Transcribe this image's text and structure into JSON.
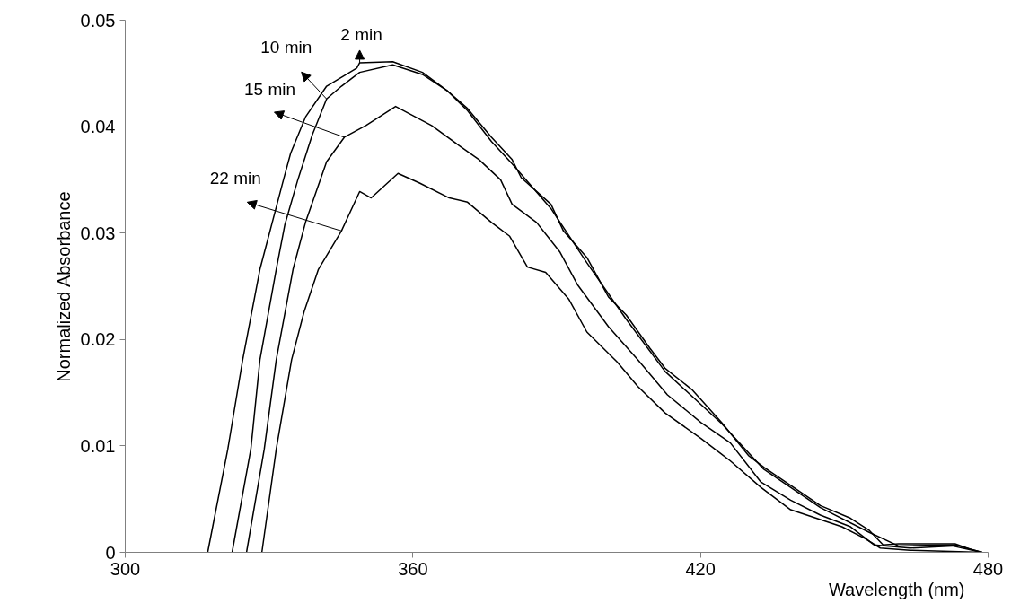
{
  "chart_data": {
    "type": "line",
    "xlabel": "Wavelength (nm)",
    "ylabel": "Normalized Absorbance",
    "xlim": [
      300,
      480
    ],
    "xticks": [
      300,
      360,
      420,
      480
    ],
    "ylim": [
      0,
      0.05
    ],
    "yticks": [
      0,
      0.01,
      0.02,
      0.03,
      0.04,
      0.05
    ],
    "grid": false,
    "line_style": "solid",
    "marker": "none",
    "series": [
      {
        "color": "#000000",
        "x": [
          317.2,
          321.4,
          324.5,
          328.1,
          333.0,
          334.5,
          337.6,
          342.0,
          348.3,
          348.9,
          355.8,
          362.0,
          367.1,
          371.4,
          376.4,
          380.7,
          382.6,
          388.8,
          391.4,
          396.3,
          400.8,
          404.5,
          409.4,
          412.6,
          418.2,
          424.4,
          430.0,
          433.2,
          438.8,
          445.0,
          451.3,
          455.1,
          458.1,
          461.3,
          467.4,
          473.1,
          476.2,
          478.7
        ],
        "values": [
          0,
          0.0097,
          0.0181,
          0.0266,
          0.035,
          0.0375,
          0.0409,
          0.0438,
          0.0455,
          0.046,
          0.0461,
          0.0451,
          0.0434,
          0.0417,
          0.039,
          0.0369,
          0.0352,
          0.0327,
          0.0302,
          0.0277,
          0.024,
          0.0223,
          0.0192,
          0.0173,
          0.0153,
          0.0122,
          0.0091,
          0.008,
          0.0063,
          0.0044,
          0.0032,
          0.0021,
          0.0007,
          0.0008,
          0.0008,
          0.0008,
          0.0003,
          0
        ]
      },
      {
        "color": "#000000",
        "x": [
          322.3,
          326.2,
          328.1,
          331.5,
          333.3,
          336.0,
          339.0,
          342.0,
          345.1,
          348.9,
          355.8,
          362.0,
          367.1,
          371.4,
          376.4,
          380.7,
          388.8,
          396.3,
          404.5,
          412.6,
          424.4,
          433.2,
          445.0,
          455.1,
          461.3,
          473.1,
          478.7
        ],
        "values": [
          0,
          0.0097,
          0.0181,
          0.0266,
          0.0308,
          0.035,
          0.0392,
          0.0426,
          0.0438,
          0.0451,
          0.0458,
          0.0449,
          0.0434,
          0.0415,
          0.0386,
          0.0365,
          0.0323,
          0.0272,
          0.0219,
          0.017,
          0.0121,
          0.0078,
          0.0042,
          0.0019,
          0.0006,
          0.0007,
          0
        ]
      },
      {
        "color": "#000000",
        "x": [
          325.3,
          329.0,
          331.5,
          335.0,
          337.6,
          342.0,
          345.7,
          350.2,
          356.4,
          363.9,
          370.0,
          373.8,
          378.3,
          380.7,
          385.8,
          390.7,
          394.4,
          400.8,
          406.9,
          413.1,
          420.1,
          426.2,
          432.6,
          438.8,
          445.0,
          451.3,
          456.2,
          463.7,
          472.5,
          478.7
        ],
        "values": [
          0,
          0.0097,
          0.0181,
          0.0266,
          0.031,
          0.0367,
          0.039,
          0.0401,
          0.0419,
          0.0401,
          0.0381,
          0.0369,
          0.035,
          0.0327,
          0.031,
          0.0282,
          0.0251,
          0.0212,
          0.0181,
          0.0148,
          0.0122,
          0.0103,
          0.0066,
          0.0049,
          0.0035,
          0.0024,
          0.0007,
          0.0004,
          0.0006,
          0
        ]
      },
      {
        "color": "#000000",
        "x": [
          328.5,
          331.5,
          334.7,
          337.3,
          340.3,
          345.1,
          348.9,
          351.3,
          356.9,
          361.4,
          367.6,
          371.4,
          376.4,
          380.2,
          383.9,
          387.7,
          392.5,
          396.3,
          402.6,
          406.9,
          412.6,
          420.1,
          426.2,
          432.6,
          438.8,
          449.5,
          454.3,
          457.5,
          463.7,
          478.7
        ],
        "values": [
          0,
          0.0097,
          0.0181,
          0.0226,
          0.0266,
          0.0302,
          0.0339,
          0.0333,
          0.0356,
          0.0347,
          0.0333,
          0.0329,
          0.031,
          0.0297,
          0.0268,
          0.0263,
          0.0238,
          0.0207,
          0.0179,
          0.0156,
          0.0131,
          0.0107,
          0.0086,
          0.0061,
          0.004,
          0.0024,
          0.0013,
          0.0004,
          0.0002,
          0
        ]
      }
    ],
    "annotations": [
      {
        "text": "2 min",
        "x": 348.9,
        "y": 0.046
      },
      {
        "text": "10 min",
        "x": 342.0,
        "y": 0.0426
      },
      {
        "text": "15 min",
        "x": 345.7,
        "y": 0.039
      },
      {
        "text": "22 min",
        "x": 345.1,
        "y": 0.0302
      }
    ]
  }
}
